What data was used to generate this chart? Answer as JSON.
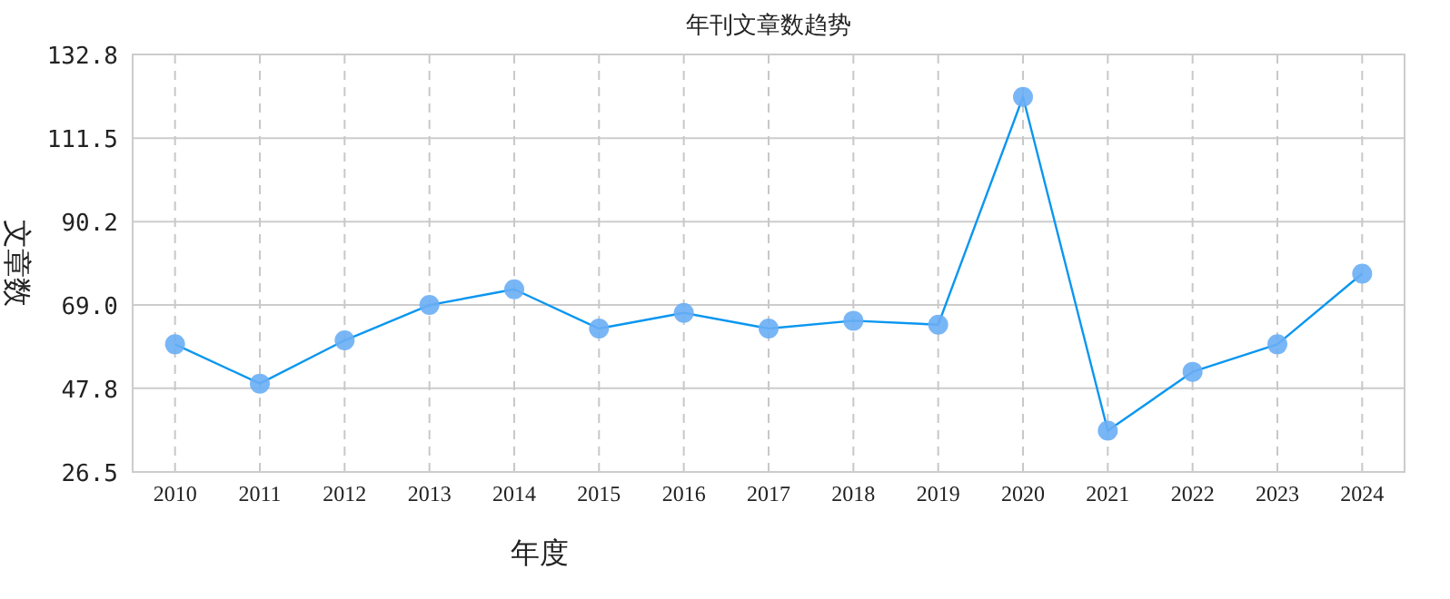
{
  "chart_data": {
    "type": "line",
    "title": "年刊文章数趋势",
    "xlabel": "年度",
    "ylabel": "文章数",
    "categories": [
      "2010",
      "2011",
      "2012",
      "2013",
      "2014",
      "2015",
      "2016",
      "2017",
      "2018",
      "2019",
      "2020",
      "2021",
      "2022",
      "2023",
      "2024"
    ],
    "series": [
      {
        "color": "#0a96f0",
        "values": [
          59,
          49,
          60,
          69,
          73,
          63,
          67,
          63,
          65,
          64,
          122,
          37,
          52,
          59,
          77
        ]
      }
    ],
    "ylim": [
      26.5,
      132.8
    ],
    "yticks": [
      {
        "value": 26.5,
        "label": "26.5"
      },
      {
        "value": 47.8,
        "label": "47.8"
      },
      {
        "value": 69.0,
        "label": "69.0"
      },
      {
        "value": 90.2,
        "label": "90.2"
      },
      {
        "value": 111.5,
        "label": "111.5"
      },
      {
        "value": 132.8,
        "label": "132.8"
      }
    ],
    "grid": true,
    "marker": "circle",
    "line_style": "solid"
  }
}
